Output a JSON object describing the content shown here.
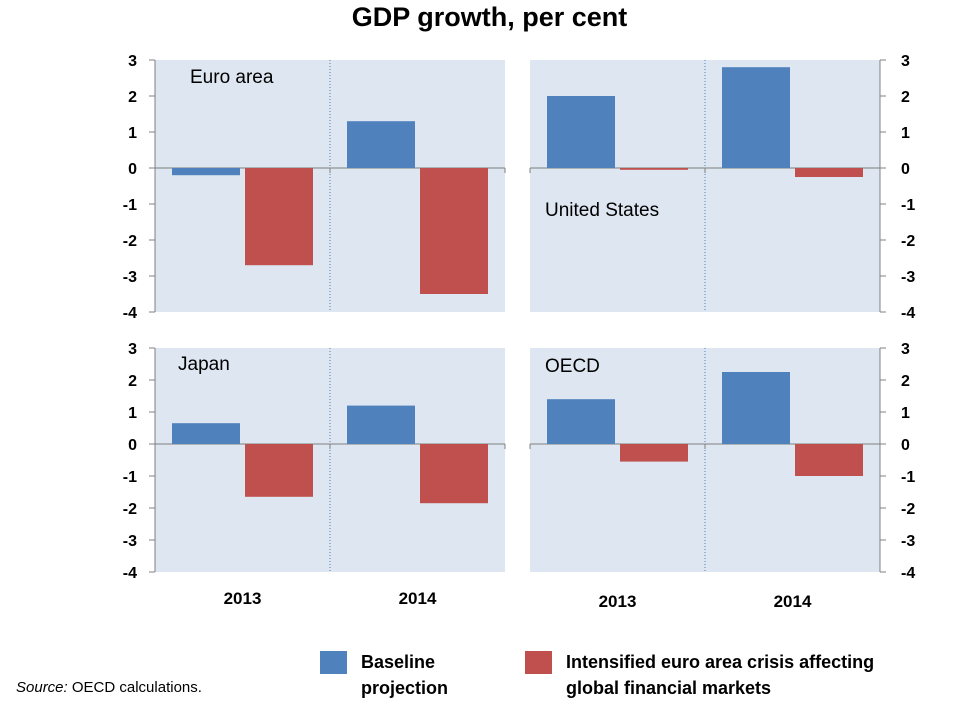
{
  "title": "GDP growth, per cent",
  "legend": {
    "baseline": {
      "label": "Baseline\nprojection",
      "color": "#4f81bd"
    },
    "crisis": {
      "label": "Intensified euro area crisis affecting\nglobal financial markets",
      "color": "#c0504d"
    }
  },
  "source": {
    "label": "Source:",
    "text": "OECD calculations."
  },
  "chart_data": {
    "type": "bar",
    "categories": [
      "2013",
      "2014"
    ],
    "ylim": [
      -4,
      3
    ],
    "yticks": [
      "-4",
      "-3",
      "-2",
      "-1",
      "0",
      "1",
      "2",
      "3"
    ],
    "grid": false,
    "legend_position": "bottom",
    "panels": [
      {
        "title": "Euro area",
        "series": [
          {
            "name": "Baseline projection",
            "values": [
              -0.2,
              1.3
            ]
          },
          {
            "name": "Intensified euro area crisis affecting global financial markets",
            "values": [
              -2.7,
              -3.5
            ]
          }
        ]
      },
      {
        "title": "United States",
        "series": [
          {
            "name": "Baseline projection",
            "values": [
              2.0,
              2.8
            ]
          },
          {
            "name": "Intensified euro area crisis affecting global financial markets",
            "values": [
              -0.05,
              -0.25
            ]
          }
        ]
      },
      {
        "title": "Japan",
        "series": [
          {
            "name": "Baseline projection",
            "values": [
              0.65,
              1.2
            ]
          },
          {
            "name": "Intensified euro area crisis affecting global financial markets",
            "values": [
              -1.65,
              -1.85
            ]
          }
        ]
      },
      {
        "title": "OECD",
        "series": [
          {
            "name": "Baseline projection",
            "values": [
              1.4,
              2.25
            ]
          },
          {
            "name": "Intensified euro area crisis affecting global financial markets",
            "values": [
              -0.55,
              -1.0
            ]
          }
        ]
      }
    ]
  }
}
